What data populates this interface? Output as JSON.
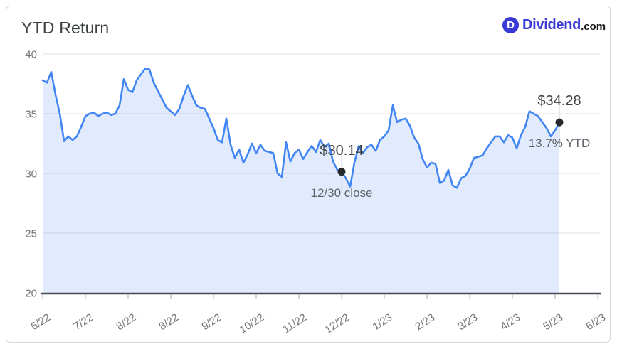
{
  "header": {
    "title": "YTD Return",
    "logo": {
      "icon_letter": "D",
      "word": "Dividend",
      "tld": ".com"
    }
  },
  "colors": {
    "line": "#4285f4",
    "area_fill": "rgba(66,133,244,0.16)",
    "axis": "#424a54",
    "grid": "#e7e7e7",
    "tick": "#bdbdbd",
    "tick_label": "#757575",
    "annotation_text": "#3c4043",
    "annotation_subtext": "#5f6368",
    "annotation_dot": "#26282c",
    "ref_line": "#dadce0",
    "logo_blue": "#3a3ad6",
    "logo_dark": "#17181c",
    "card_border": "#d7d7d7"
  },
  "chart_data": {
    "type": "area",
    "title": "YTD Return",
    "xlabel": "",
    "ylabel": "",
    "ylim": [
      20,
      40
    ],
    "grid": true,
    "legend": "none",
    "y_tick_labels": [
      "40",
      "35",
      "30",
      "25",
      "20"
    ],
    "x_tick_labels": [
      "6/22",
      "7/22",
      "8/22",
      "8/22",
      "9/22",
      "10/22",
      "11/22",
      "12/22",
      "1/23",
      "2/23",
      "3/23",
      "4/23",
      "5/23",
      "6/23"
    ],
    "series": [
      {
        "name": "YTD Return",
        "values": [
          37.8,
          37.6,
          38.5,
          36.6,
          35.0,
          32.7,
          33.1,
          32.8,
          33.1,
          33.9,
          34.8,
          35.0,
          35.1,
          34.8,
          35.0,
          35.1,
          34.9,
          35.0,
          35.7,
          37.9,
          37.0,
          36.8,
          37.8,
          38.3,
          38.8,
          38.7,
          37.6,
          36.9,
          36.2,
          35.5,
          35.2,
          34.9,
          35.4,
          36.5,
          37.4,
          36.5,
          35.7,
          35.5,
          35.4,
          34.6,
          33.8,
          32.8,
          32.6,
          34.6,
          32.4,
          31.3,
          32.0,
          30.9,
          31.6,
          32.5,
          31.7,
          32.4,
          31.9,
          31.8,
          31.7,
          30.0,
          29.7,
          32.6,
          31.0,
          31.7,
          32.0,
          31.2,
          31.8,
          32.3,
          31.8,
          32.8,
          32.2,
          32.5,
          31.0,
          30.3,
          30.14,
          29.6,
          28.9,
          30.9,
          32.3,
          31.7,
          32.2,
          32.4,
          31.9,
          32.8,
          33.1,
          33.6,
          35.7,
          34.3,
          34.5,
          34.6,
          34.0,
          33.0,
          32.5,
          31.2,
          30.5,
          30.9,
          30.8,
          29.2,
          29.4,
          30.3,
          29.0,
          28.8,
          29.6,
          29.8,
          30.4,
          31.3,
          31.4,
          31.5,
          32.1,
          32.6,
          33.1,
          33.1,
          32.6,
          33.2,
          33.0,
          32.1,
          33.2,
          33.9,
          35.2,
          35.0,
          34.8,
          34.3,
          33.8,
          33.1,
          33.6,
          34.28
        ]
      }
    ],
    "annotations": [
      {
        "index": 70,
        "value": 30.14,
        "label": "$30.14",
        "sublabel": "12/30 close"
      },
      {
        "index": 121,
        "value": 34.28,
        "label": "$34.28",
        "sublabel": "13.7% YTD"
      }
    ]
  }
}
